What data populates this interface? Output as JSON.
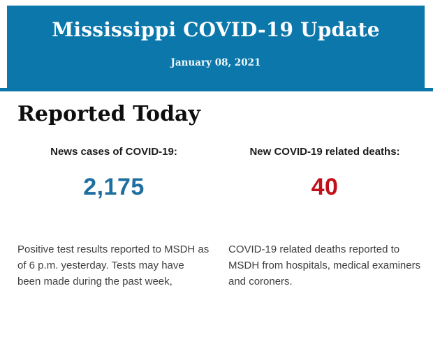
{
  "header": {
    "title": "Mississippi COVID-19 Update",
    "date": "January 08, 2021",
    "background_color": "#0c77aa",
    "text_color": "#ffffff"
  },
  "main": {
    "heading": "Reported Today",
    "stats": [
      {
        "label": "News cases of COVID-19:",
        "value": "2,175",
        "value_color": "#1e6f9f",
        "description": "Positive test results reported to MSDH as of 6 p.m. yesterday. Tests may have been made during the past week,"
      },
      {
        "label": "New COVID-19 related deaths:",
        "value": "40",
        "value_color": "#c1101a",
        "description": "COVID-19 related deaths reported to MSDH from hospitals, medical examiners and coroners."
      }
    ]
  }
}
